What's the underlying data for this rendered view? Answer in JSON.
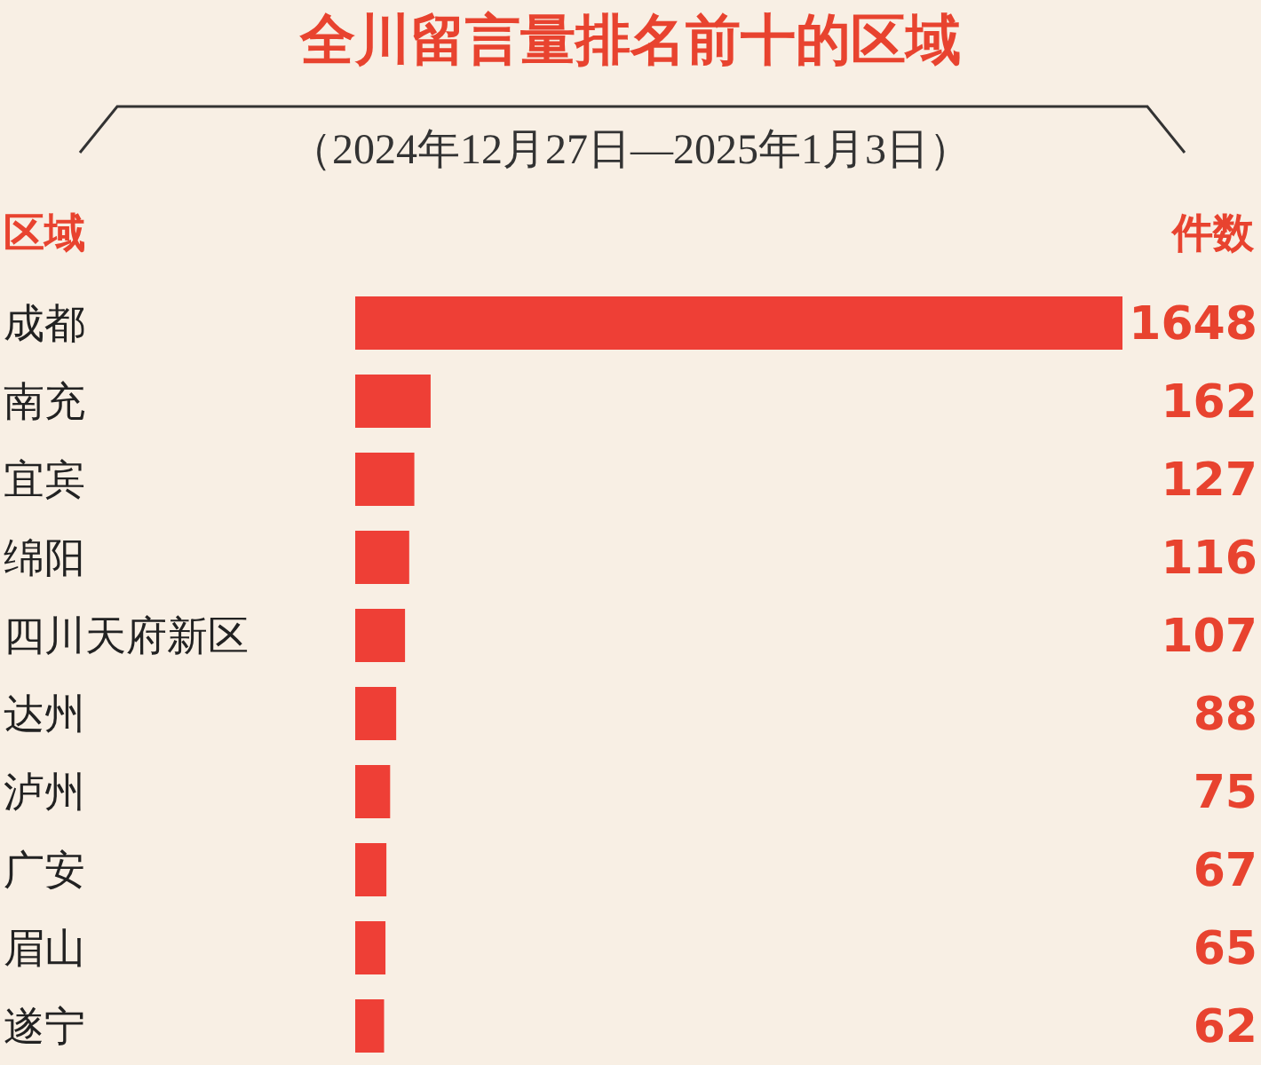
{
  "chart_data": {
    "type": "bar",
    "orientation": "horizontal",
    "title": "全川留言量排名前十的区域",
    "subtitle": "（2024年12月27日—2025年1月3日）",
    "ylabel": "区域",
    "xlabel": "件数",
    "categories": [
      "成都",
      "南充",
      "宜宾",
      "绵阳",
      "四川天府新区",
      "达州",
      "泸州",
      "广安",
      "眉山",
      "遂宁"
    ],
    "values": [
      1648,
      162,
      127,
      116,
      107,
      88,
      75,
      67,
      65,
      62
    ],
    "color": "#ee3f36",
    "data_labels": true,
    "grid": false,
    "legend": false
  }
}
